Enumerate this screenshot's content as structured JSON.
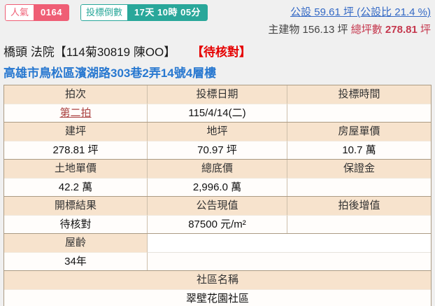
{
  "badges": {
    "popularity_label": "人氣",
    "popularity_value": "0164",
    "countdown_label": "投標倒數",
    "countdown_value": "17天 10時 05分"
  },
  "summary": {
    "common_area_link": "公設 59.61 坪 (公設比 21.4 %)",
    "main_building": "主建物 156.13 坪",
    "total_ping_label": "總坪數",
    "total_ping_value": "278.81",
    "total_ping_unit": "坪"
  },
  "header": {
    "title": "橋頭 法院【114菊30819 陳OO】",
    "status": "【待核對】",
    "address": "高雄市鳥松區濱湖路303巷2弄14號4層樓"
  },
  "table": {
    "groups": [
      {
        "headers": [
          "拍次",
          "投標日期",
          "投標時間"
        ],
        "values": [
          "第二拍",
          "115/4/14(二)",
          ""
        ]
      },
      {
        "headers": [
          "建坪",
          "地坪",
          "房屋單價"
        ],
        "values": [
          "278.81 坪",
          "70.97 坪",
          "10.7 萬"
        ]
      },
      {
        "headers": [
          "土地單價",
          "總底價",
          "保證金"
        ],
        "values": [
          "42.2 萬",
          "2,996.0 萬",
          ""
        ]
      },
      {
        "headers": [
          "開標結果",
          "公告現值",
          "拍後增值"
        ],
        "values": [
          "待核對",
          "87500 元/m²",
          ""
        ]
      }
    ],
    "age": {
      "header": "屋齡",
      "value": "34年"
    },
    "community": {
      "header": "社區名稱",
      "value": "翠壁花園社區"
    }
  },
  "colors": {
    "accent_pink": "#ef5e75",
    "accent_teal": "#29a79a",
    "link_blue": "#3469c5",
    "address_blue": "#2878d0",
    "status_red": "#e60000",
    "value_red": "#d9232d",
    "round_link_red": "#ab4342",
    "header_peach": "#f7e3cd",
    "table_border": "#ab9b84",
    "page_bg": "#f0f0f0"
  }
}
